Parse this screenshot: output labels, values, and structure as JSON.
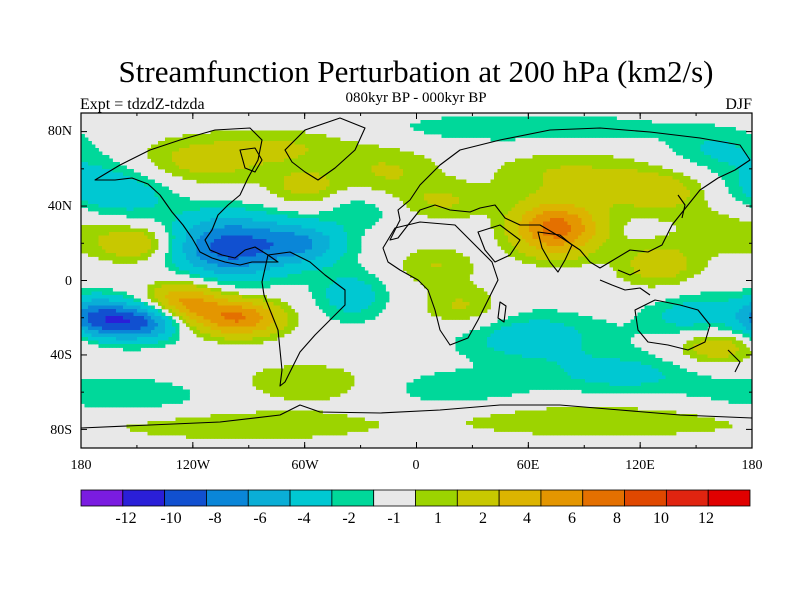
{
  "chart_data": {
    "type": "heatmap",
    "title": "Streamfunction Perturbation at 200 hPa (km2/s)",
    "subtitle": "080kyr BP - 000kyr BP",
    "left_label": "Expt = tdzdZ-tdzda",
    "right_label": "DJF",
    "x_ticks": [
      "180",
      "120W",
      "60W",
      "0",
      "60E",
      "120E",
      "180"
    ],
    "x_tick_values": [
      -180,
      -120,
      -60,
      0,
      60,
      120,
      180
    ],
    "y_ticks": [
      "80N",
      "40N",
      "0",
      "40S",
      "80S"
    ],
    "y_tick_values": [
      80,
      40,
      0,
      -40,
      -80
    ],
    "xlim": [
      -180,
      180
    ],
    "ylim": [
      -90,
      90
    ],
    "colorbar": {
      "colors": [
        "#7a1ce0",
        "#2a1fd8",
        "#1150d0",
        "#0a86d8",
        "#0aaed6",
        "#00c8d2",
        "#00d89a",
        "#e8e8e8",
        "#9cd400",
        "#c8c800",
        "#dcb400",
        "#e49600",
        "#e47000",
        "#e04800",
        "#e02410",
        "#e00000"
      ],
      "labels": [
        "-12",
        "-10",
        "-8",
        "-6",
        "-4",
        "-2",
        "-1",
        "1",
        "2",
        "4",
        "6",
        "8",
        "10",
        "12"
      ]
    },
    "anomalies": [
      {
        "lon": -100,
        "lat": 18,
        "sx": 22,
        "sy": 12,
        "value": -9
      },
      {
        "lon": -125,
        "lat": -12,
        "sx": 14,
        "sy": 8,
        "value": 7
      },
      {
        "lon": -95,
        "lat": -20,
        "sx": 16,
        "sy": 7,
        "value": 8
      },
      {
        "lon": -148,
        "lat": -22,
        "sx": 16,
        "sy": 7,
        "value": -9
      },
      {
        "lon": -172,
        "lat": -20,
        "sx": 12,
        "sy": 8,
        "value": -6
      },
      {
        "lon": -150,
        "lat": 20,
        "sx": 14,
        "sy": 7,
        "value": 4
      },
      {
        "lon": -60,
        "lat": 20,
        "sx": 16,
        "sy": 8,
        "value": -5
      },
      {
        "lon": -35,
        "lat": -8,
        "sx": 14,
        "sy": 10,
        "value": -3
      },
      {
        "lon": -162,
        "lat": 50,
        "sx": 26,
        "sy": 12,
        "value": -4
      },
      {
        "lon": -125,
        "lat": 62,
        "sx": 28,
        "sy": 10,
        "value": 3
      },
      {
        "lon": -70,
        "lat": 72,
        "sx": 30,
        "sy": 8,
        "value": 2
      },
      {
        "lon": -60,
        "lat": 50,
        "sx": 14,
        "sy": 7,
        "value": 2.5
      },
      {
        "lon": -15,
        "lat": 58,
        "sx": 20,
        "sy": 10,
        "value": 2
      },
      {
        "lon": 60,
        "lat": 82,
        "sx": 60,
        "sy": 6,
        "value": -2
      },
      {
        "lon": -30,
        "lat": 38,
        "sx": 14,
        "sy": 7,
        "value": -2
      },
      {
        "lon": 15,
        "lat": 42,
        "sx": 18,
        "sy": 7,
        "value": 2
      },
      {
        "lon": 75,
        "lat": 28,
        "sx": 16,
        "sy": 10,
        "value": 9
      },
      {
        "lon": 80,
        "lat": 58,
        "sx": 30,
        "sy": 9,
        "value": 2
      },
      {
        "lon": 130,
        "lat": 48,
        "sx": 22,
        "sy": 9,
        "value": 3
      },
      {
        "lon": 160,
        "lat": 70,
        "sx": 20,
        "sy": 8,
        "value": -2
      },
      {
        "lon": 170,
        "lat": 28,
        "sx": 20,
        "sy": 10,
        "value": 2
      },
      {
        "lon": 130,
        "lat": 8,
        "sx": 16,
        "sy": 9,
        "value": 3
      },
      {
        "lon": 150,
        "lat": -20,
        "sx": 20,
        "sy": 10,
        "value": -3
      },
      {
        "lon": 160,
        "lat": -35,
        "sx": 16,
        "sy": 7,
        "value": 4
      },
      {
        "lon": 60,
        "lat": -30,
        "sx": 30,
        "sy": 10,
        "value": -3
      },
      {
        "lon": 25,
        "lat": -15,
        "sx": 16,
        "sy": 8,
        "value": 2.5
      },
      {
        "lon": 10,
        "lat": 8,
        "sx": 16,
        "sy": 8,
        "value": 2
      },
      {
        "lon": -60,
        "lat": -55,
        "sx": 30,
        "sy": 8,
        "value": 2
      },
      {
        "lon": -160,
        "lat": -62,
        "sx": 40,
        "sy": 8,
        "value": -2
      },
      {
        "lon": 20,
        "lat": -58,
        "sx": 30,
        "sy": 7,
        "value": -2
      },
      {
        "lon": 110,
        "lat": -50,
        "sx": 30,
        "sy": 8,
        "value": -2.5
      },
      {
        "lon": 100,
        "lat": -75,
        "sx": 60,
        "sy": 7,
        "value": 2
      },
      {
        "lon": -90,
        "lat": -78,
        "sx": 50,
        "sy": 6,
        "value": 2
      }
    ]
  }
}
